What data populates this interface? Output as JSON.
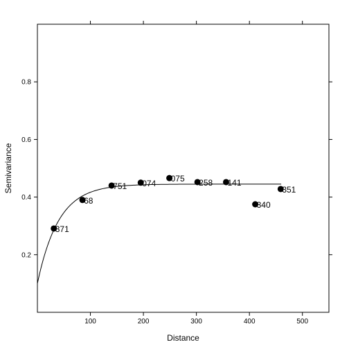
{
  "chart_data": {
    "type": "scatter",
    "xlabel": "Distance",
    "ylabel": "Semivariance",
    "xlim": [
      0,
      550
    ],
    "ylim": [
      0.0,
      1.0
    ],
    "xticks": [
      100,
      200,
      300,
      400,
      500
    ],
    "yticks": [
      0.2,
      0.4,
      0.6,
      0.8
    ],
    "grid": false,
    "points": [
      {
        "x": 31,
        "y": 0.291,
        "label": "371"
      },
      {
        "x": 85,
        "y": 0.39,
        "label": "68"
      },
      {
        "x": 140,
        "y": 0.44,
        "label": "751"
      },
      {
        "x": 195,
        "y": 0.45,
        "label": "074"
      },
      {
        "x": 249,
        "y": 0.466,
        "label": "075"
      },
      {
        "x": 302,
        "y": 0.452,
        "label": "258"
      },
      {
        "x": 356,
        "y": 0.452,
        "label": "141"
      },
      {
        "x": 411,
        "y": 0.375,
        "label": "340"
      },
      {
        "x": 459,
        "y": 0.428,
        "label": "351"
      }
    ],
    "model_curve": {
      "type": "exponential",
      "nugget": 0.1,
      "sill": 0.445,
      "range": 40,
      "x_range": [
        0,
        460
      ]
    }
  }
}
